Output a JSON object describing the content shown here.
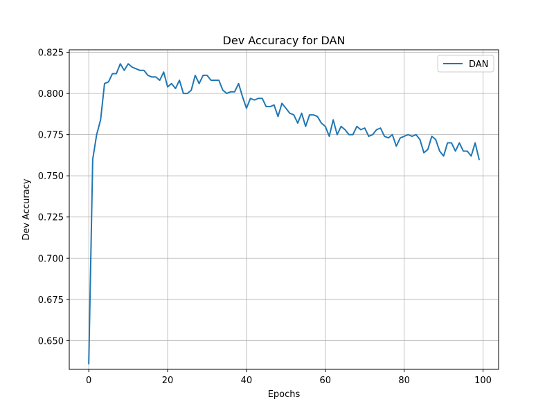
{
  "chart_data": {
    "type": "line",
    "title": "Dev Accuracy for DAN",
    "xlabel": "Epochs",
    "ylabel": "Dev Accuracy",
    "xlim": [
      -4.95,
      103.95
    ],
    "ylim": [
      0.6325,
      0.8265
    ],
    "xticks": [
      0,
      20,
      40,
      60,
      80,
      100
    ],
    "xtick_labels": [
      "0",
      "20",
      "40",
      "60",
      "80",
      "100"
    ],
    "yticks": [
      0.65,
      0.675,
      0.7,
      0.725,
      0.75,
      0.775,
      0.8,
      0.825
    ],
    "ytick_labels": [
      "0.650",
      "0.675",
      "0.700",
      "0.725",
      "0.750",
      "0.775",
      "0.800",
      "0.825"
    ],
    "grid": true,
    "legend_position": "top-right",
    "series": [
      {
        "name": "DAN",
        "color": "#1f77b4",
        "x": [
          0,
          1,
          2,
          3,
          4,
          5,
          6,
          7,
          8,
          9,
          10,
          11,
          12,
          13,
          14,
          15,
          16,
          17,
          18,
          19,
          20,
          21,
          22,
          23,
          24,
          25,
          26,
          27,
          28,
          29,
          30,
          31,
          32,
          33,
          34,
          35,
          36,
          37,
          38,
          39,
          40,
          41,
          42,
          43,
          44,
          45,
          46,
          47,
          48,
          49,
          50,
          51,
          52,
          53,
          54,
          55,
          56,
          57,
          58,
          59,
          60,
          61,
          62,
          63,
          64,
          65,
          66,
          67,
          68,
          69,
          70,
          71,
          72,
          73,
          74,
          75,
          76,
          77,
          78,
          79,
          80,
          81,
          82,
          83,
          84,
          85,
          86,
          87,
          88,
          89,
          90,
          91,
          92,
          93,
          94,
          95,
          96,
          97,
          98,
          99
        ],
        "y": [
          0.636,
          0.76,
          0.775,
          0.784,
          0.806,
          0.807,
          0.812,
          0.812,
          0.818,
          0.814,
          0.818,
          0.816,
          0.815,
          0.814,
          0.814,
          0.811,
          0.81,
          0.81,
          0.808,
          0.813,
          0.804,
          0.806,
          0.803,
          0.808,
          0.8,
          0.8,
          0.802,
          0.811,
          0.806,
          0.811,
          0.811,
          0.808,
          0.808,
          0.808,
          0.802,
          0.8,
          0.801,
          0.801,
          0.806,
          0.798,
          0.791,
          0.797,
          0.796,
          0.797,
          0.797,
          0.792,
          0.792,
          0.793,
          0.786,
          0.794,
          0.791,
          0.788,
          0.787,
          0.782,
          0.788,
          0.78,
          0.787,
          0.787,
          0.786,
          0.782,
          0.78,
          0.774,
          0.784,
          0.775,
          0.78,
          0.778,
          0.775,
          0.775,
          0.78,
          0.778,
          0.779,
          0.774,
          0.775,
          0.778,
          0.779,
          0.774,
          0.773,
          0.775,
          0.768,
          0.773,
          0.774,
          0.775,
          0.774,
          0.775,
          0.772,
          0.764,
          0.766,
          0.774,
          0.772,
          0.765,
          0.762,
          0.77,
          0.77,
          0.765,
          0.77,
          0.765,
          0.765,
          0.762,
          0.77,
          0.76
        ]
      }
    ]
  }
}
